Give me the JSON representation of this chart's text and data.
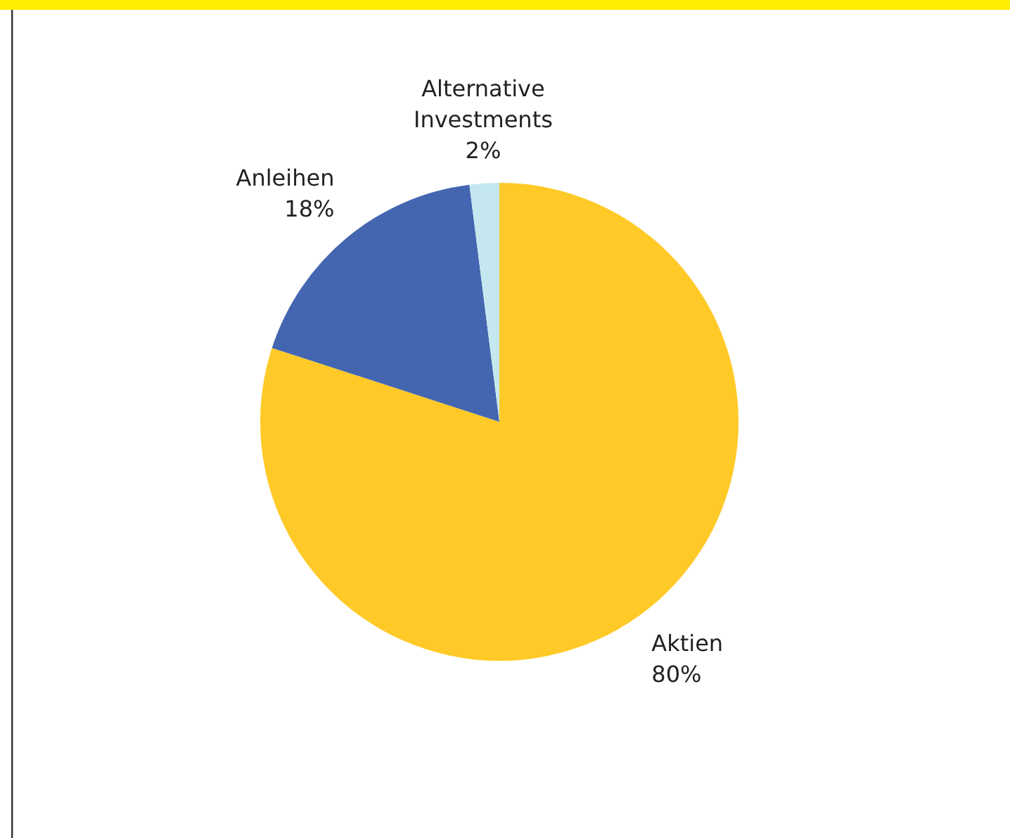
{
  "chart_data": {
    "type": "pie",
    "categories": [
      "Aktien",
      "Anleihen",
      "Alternative Investments"
    ],
    "values": [
      80,
      18,
      2
    ],
    "colors": [
      "#ffca28",
      "#4466b0",
      "#c5e8f0"
    ],
    "value_labels": [
      "80%",
      "18%",
      "2%"
    ]
  }
}
